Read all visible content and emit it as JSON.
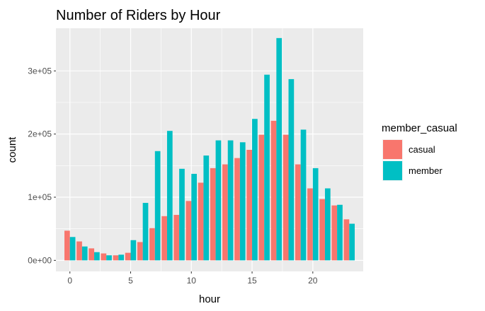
{
  "chart_data": {
    "type": "bar",
    "title": "Number of Riders by Hour",
    "xlabel": "hour",
    "ylabel": "count",
    "x": [
      0,
      1,
      2,
      3,
      4,
      5,
      6,
      7,
      8,
      9,
      10,
      11,
      12,
      13,
      14,
      15,
      16,
      17,
      18,
      19,
      20,
      21,
      22,
      23
    ],
    "xticks": [
      0,
      5,
      10,
      15,
      20
    ],
    "xlim": [
      -1.15,
      24.15
    ],
    "yticks": [
      0,
      100000,
      200000,
      300000
    ],
    "ytick_labels": [
      "0e+00",
      "1e+05",
      "2e+05",
      "3e+05"
    ],
    "ylim": [
      -17500,
      367500
    ],
    "grid": true,
    "background": "#ebebeb",
    "legend": {
      "title": "member_casual",
      "position": "right"
    },
    "series": [
      {
        "name": "casual",
        "color": "#F8766D",
        "values": [
          47000,
          30000,
          19000,
          11000,
          8000,
          12000,
          29000,
          51000,
          70000,
          72000,
          94000,
          123000,
          146000,
          152000,
          162000,
          175000,
          199000,
          221000,
          199000,
          152000,
          114000,
          97000,
          87000,
          65000
        ]
      },
      {
        "name": "member",
        "color": "#00BFC4",
        "values": [
          37000,
          22000,
          13000,
          8000,
          9000,
          32000,
          91000,
          173000,
          205000,
          145000,
          137000,
          166000,
          190000,
          190000,
          187000,
          224000,
          294000,
          352000,
          287000,
          207000,
          146000,
          114000,
          88000,
          58000
        ]
      }
    ]
  }
}
